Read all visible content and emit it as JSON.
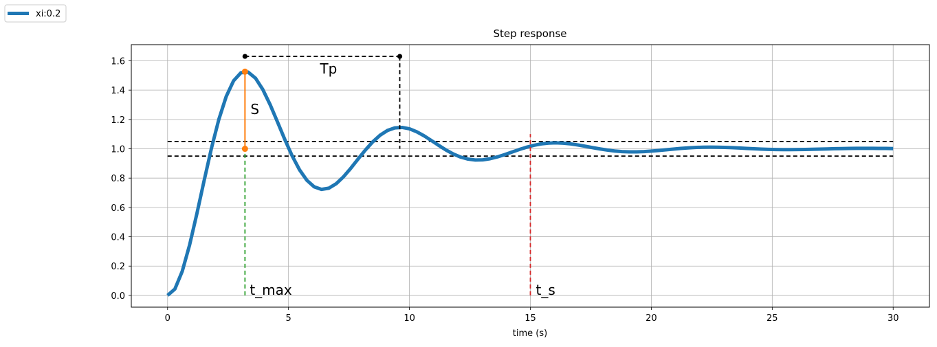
{
  "chart_data": {
    "type": "line",
    "title": "Step response",
    "xlabel": "time (s)",
    "ylabel": "",
    "xlim": [
      -1.5,
      31.5
    ],
    "ylim": [
      -0.08,
      1.71
    ],
    "grid": true,
    "legend_placement": "top-left (outside axes)",
    "x_ticks": [
      0,
      5,
      10,
      15,
      20,
      25,
      30
    ],
    "x_tick_labels": [
      "0",
      "5",
      "10",
      "15",
      "20",
      "25",
      "30"
    ],
    "y_ticks": [
      0.0,
      0.2,
      0.4,
      0.6,
      0.8,
      1.0,
      1.2,
      1.4,
      1.6
    ],
    "y_tick_labels": [
      "0.0",
      "0.2",
      "0.4",
      "0.6",
      "0.8",
      "1.0",
      "1.2",
      "1.4",
      "1.6"
    ],
    "series": [
      {
        "name": "xi:0.2",
        "color": "#1f77b4",
        "model": "second-order step response, zeta = 0.2, wn = 1.0",
        "t_range": [
          0,
          30
        ],
        "samples": 100
      }
    ],
    "annotations": {
      "tolerance_band": {
        "upper": 1.05,
        "lower": 0.95,
        "x_range": [
          0,
          30
        ],
        "color": "#000000"
      },
      "t_max": {
        "x": 3.2,
        "y_peak": 1.526,
        "label": "t_max",
        "color": "#2ca02c"
      },
      "overshoot": {
        "x": 3.2,
        "from": 1.0,
        "to": 1.526,
        "label": "S",
        "color": "#ff7f0e"
      },
      "period": {
        "x_start": 3.2,
        "x_end": 9.6,
        "y": 1.63,
        "y_end_drop": 1.0,
        "label": "Tp",
        "color": "#000000"
      },
      "settling_time": {
        "x": 15.0,
        "y_top": 1.1,
        "label": "t_s",
        "color": "#d62728"
      }
    }
  }
}
